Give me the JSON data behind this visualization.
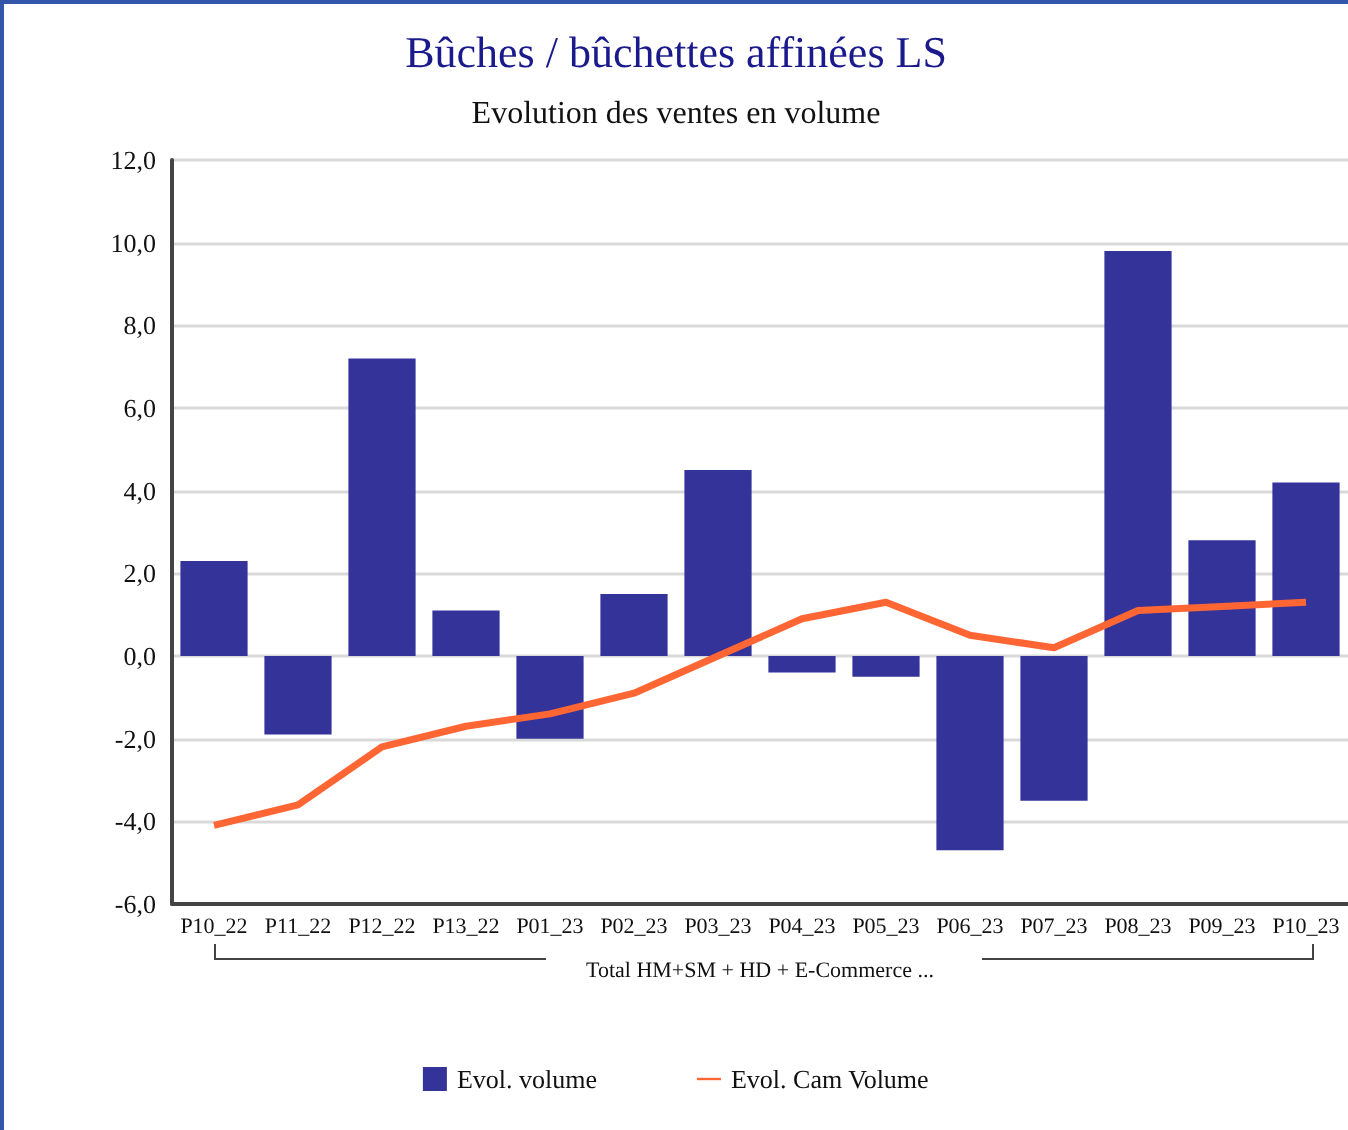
{
  "chart_data": {
    "type": "bar",
    "title": "Bûches / bûchettes affinées LS",
    "subtitle": "Evolution des ventes en volume",
    "xlabel": "Total HM+SM + HD + E-Commerce ...",
    "categories": [
      "P10_22",
      "P11_22",
      "P12_22",
      "P13_22",
      "P01_23",
      "P02_23",
      "P03_23",
      "P04_23",
      "P05_23",
      "P06_23",
      "P07_23",
      "P08_23",
      "P09_23",
      "P10_23"
    ],
    "series": [
      {
        "name": "Evol. volume",
        "color": "#333399",
        "values": [
          2.3,
          -1.9,
          7.2,
          1.1,
          -2.0,
          1.5,
          4.5,
          -0.4,
          -0.5,
          -4.7,
          -3.5,
          9.8,
          2.8,
          4.2
        ]
      },
      {
        "name": "Evol. Cam Volume",
        "type": "line",
        "color": "#ff6633",
        "values": [
          -4.1,
          -3.6,
          -2.2,
          -1.7,
          -1.4,
          -0.9,
          0.0,
          0.9,
          1.3,
          0.5,
          0.2,
          1.1,
          1.2,
          1.3
        ]
      }
    ],
    "ylim": [
      -6,
      12
    ],
    "yticks": [
      {
        "value": -6,
        "label": "-6,0"
      },
      {
        "value": -4,
        "label": "-4,0"
      },
      {
        "value": -2,
        "label": "-2,0"
      },
      {
        "value": 0,
        "label": "0,0"
      },
      {
        "value": 2,
        "label": "2,0"
      },
      {
        "value": 4,
        "label": "4,0"
      },
      {
        "value": 6,
        "label": "6,0"
      },
      {
        "value": 8,
        "label": "8,0"
      },
      {
        "value": 10,
        "label": "10,0"
      },
      {
        "value": 12,
        "label": "12,0"
      }
    ],
    "grid": "y",
    "legend": "bottom",
    "marker": "none"
  }
}
